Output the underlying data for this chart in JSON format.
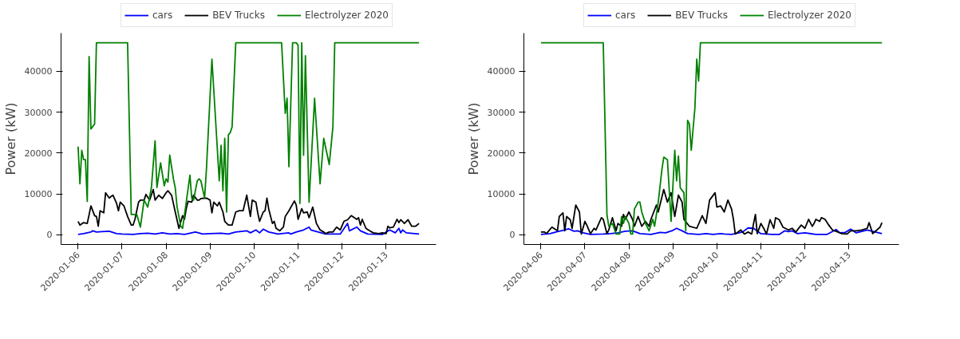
{
  "chart_data": [
    {
      "type": "line",
      "ylabel": "Power (kW)",
      "legend": "top",
      "grid": false,
      "xlim": [
        "2020-01-05T14:42",
        "2020-01-14T03:18"
      ],
      "xticks": [
        "2020-01-06",
        "2020-01-07",
        "2020-01-08",
        "2020-01-09",
        "2020-01-10",
        "2020-01-11",
        "2020-01-12",
        "2020-01-13"
      ],
      "ylim": [
        -2350,
        49350
      ],
      "yticks": [
        0,
        10000,
        20000,
        30000,
        40000
      ],
      "series": [
        {
          "name": "cars",
          "color": "#0000ff",
          "x": [
            "2020-01-06T00:00",
            "2020-01-06T03:00",
            "2020-01-06T06:00",
            "2020-01-06T07:00",
            "2020-01-06T08:00",
            "2020-01-06T10:00",
            "2020-01-06T13:00",
            "2020-01-06T17:00",
            "2020-01-06T21:00",
            "2020-01-07T00:00",
            "2020-01-07T06:00",
            "2020-01-07T10:00",
            "2020-01-07T14:00",
            "2020-01-07T18:00",
            "2020-01-07T22:00",
            "2020-01-08T02:00",
            "2020-01-08T06:00",
            "2020-01-08T10:00",
            "2020-01-08T16:00",
            "2020-01-08T20:00",
            "2020-01-09T00:00",
            "2020-01-09T06:00",
            "2020-01-09T10:00",
            "2020-01-09T14:00",
            "2020-01-09T20:00",
            "2020-01-09T22:00",
            "2020-01-10T01:00",
            "2020-01-10T03:00",
            "2020-01-10T05:00",
            "2020-01-10T08:00",
            "2020-01-10T13:00",
            "2020-01-10T19:00",
            "2020-01-10T20:00",
            "2020-01-10T23:00",
            "2020-01-11T03:00",
            "2020-01-11T06:00",
            "2020-01-11T07:00",
            "2020-01-11T11:00",
            "2020-01-11T15:00",
            "2020-01-11T23:00",
            "2020-01-12T03:00",
            "2020-01-12T04:00",
            "2020-01-12T08:00",
            "2020-01-12T10:00",
            "2020-01-12T14:00",
            "2020-01-12T22:00",
            "2020-01-13T02:00",
            "2020-01-13T05:00",
            "2020-01-13T07:00",
            "2020-01-13T08:00",
            "2020-01-13T09:00",
            "2020-01-13T11:00",
            "2020-01-13T18:00"
          ],
          "values": [
            100,
            300,
            600,
            700,
            1000,
            700,
            800,
            900,
            300,
            200,
            100,
            300,
            400,
            200,
            500,
            200,
            300,
            100,
            700,
            200,
            300,
            400,
            200,
            700,
            1000,
            500,
            1200,
            500,
            1400,
            700,
            200,
            500,
            200,
            700,
            1200,
            1900,
            1200,
            700,
            200,
            200,
            2800,
            1000,
            1900,
            1000,
            200,
            100,
            1200,
            500,
            1600,
            500,
            1200,
            500,
            200
          ]
        },
        {
          "name": "BEV Trucks",
          "color": "#000000",
          "x": [
            "2020-01-06T00:00",
            "2020-01-06T01:00",
            "2020-01-06T03:00",
            "2020-01-06T05:00",
            "2020-01-06T07:00",
            "2020-01-06T09:00",
            "2020-01-06T10:00",
            "2020-01-06T11:00",
            "2020-01-06T12:00",
            "2020-01-06T14:00",
            "2020-01-06T15:00",
            "2020-01-06T17:00",
            "2020-01-06T18:00",
            "2020-01-06T19:00",
            "2020-01-06T21:00",
            "2020-01-06T22:00",
            "2020-01-06T23:00",
            "2020-01-07T01:00",
            "2020-01-07T03:00",
            "2020-01-07T05:00",
            "2020-01-07T06:00",
            "2020-01-07T07:00",
            "2020-01-07T09:00",
            "2020-01-07T10:00",
            "2020-01-07T12:00",
            "2020-01-07T13:00",
            "2020-01-07T15:00",
            "2020-01-07T17:00",
            "2020-01-07T18:00",
            "2020-01-07T20:00",
            "2020-01-07T22:00",
            "2020-01-08T00:00",
            "2020-01-08T01:00",
            "2020-01-08T03:00",
            "2020-01-08T05:00",
            "2020-01-08T07:00",
            "2020-01-08T09:00",
            "2020-01-08T10:00",
            "2020-01-08T11:00",
            "2020-01-08T12:00",
            "2020-01-08T14:00",
            "2020-01-08T15:00",
            "2020-01-08T17:00",
            "2020-01-08T18:00",
            "2020-01-08T19:00",
            "2020-01-08T22:00",
            "2020-01-09T00:00",
            "2020-01-09T01:00",
            "2020-01-09T02:00",
            "2020-01-09T04:00",
            "2020-01-09T05:00",
            "2020-01-09T07:00",
            "2020-01-09T08:00",
            "2020-01-09T10:00",
            "2020-01-09T12:00",
            "2020-01-09T14:00",
            "2020-01-09T16:00",
            "2020-01-09T18:00",
            "2020-01-09T20:00",
            "2020-01-09T22:00",
            "2020-01-09T23:00",
            "2020-01-10T01:00",
            "2020-01-10T02:00",
            "2020-01-10T03:00",
            "2020-01-10T05:00",
            "2020-01-10T06:00",
            "2020-01-10T07:00",
            "2020-01-10T08:00",
            "2020-01-10T10:00",
            "2020-01-10T11:00",
            "2020-01-10T12:00",
            "2020-01-10T14:00",
            "2020-01-10T16:00",
            "2020-01-10T17:00",
            "2020-01-10T19:00",
            "2020-01-10T22:00",
            "2020-01-10T23:00",
            "2020-01-11T00:00",
            "2020-01-11T02:00",
            "2020-01-11T03:00",
            "2020-01-11T05:00",
            "2020-01-11T06:00",
            "2020-01-11T08:00",
            "2020-01-11T10:00",
            "2020-01-11T12:00",
            "2020-01-11T14:00",
            "2020-01-11T15:00",
            "2020-01-11T17:00",
            "2020-01-11T19:00",
            "2020-01-11T21:00",
            "2020-01-11T23:00",
            "2020-01-12T01:00",
            "2020-01-12T03:00",
            "2020-01-12T05:00",
            "2020-01-12T08:00",
            "2020-01-12T09:00",
            "2020-01-12T10:00",
            "2020-01-12T11:00",
            "2020-01-12T13:00",
            "2020-01-12T15:00",
            "2020-01-12T17:00",
            "2020-01-12T20:00",
            "2020-01-12T22:00",
            "2020-01-13T00:00",
            "2020-01-13T01:00",
            "2020-01-13T02:00",
            "2020-01-13T04:00",
            "2020-01-13T06:00",
            "2020-01-13T07:00",
            "2020-01-13T08:00",
            "2020-01-13T10:00",
            "2020-01-13T12:00",
            "2020-01-13T14:00",
            "2020-01-13T16:00",
            "2020-01-13T18:00"
          ],
          "values": [
            3300,
            2400,
            3000,
            2800,
            7100,
            4700,
            4500,
            2100,
            5900,
            5400,
            10300,
            9000,
            9400,
            9700,
            7700,
            5900,
            8000,
            7100,
            4500,
            2400,
            2400,
            3800,
            8000,
            8500,
            8500,
            9900,
            8500,
            11100,
            8500,
            9700,
            8900,
            10300,
            10800,
            9700,
            5600,
            1600,
            4700,
            3800,
            6400,
            8200,
            8000,
            9700,
            8500,
            8500,
            8900,
            9000,
            8500,
            5400,
            8000,
            7100,
            8000,
            5600,
            3300,
            2400,
            2400,
            5600,
            5900,
            5900,
            9700,
            4500,
            8500,
            8000,
            5400,
            3300,
            5600,
            5900,
            9000,
            6300,
            2800,
            3300,
            1600,
            1000,
            1900,
            4500,
            5900,
            8300,
            7300,
            3800,
            6400,
            5400,
            5600,
            4200,
            6800,
            2800,
            1200,
            700,
            300,
            700,
            700,
            1900,
            1200,
            3300,
            3700,
            4700,
            3800,
            4200,
            2400,
            3800,
            1600,
            1000,
            500,
            300,
            500,
            300,
            2100,
            1700,
            1900,
            3800,
            3000,
            3700,
            2800,
            3700,
            2100,
            2100,
            2800
          ]
        },
        {
          "name": "Electrolyzer 2020",
          "color": "#008000",
          "x": [
            "2020-01-06T00:00",
            "2020-01-06T01:00",
            "2020-01-06T02:00",
            "2020-01-06T03:00",
            "2020-01-06T04:00",
            "2020-01-06T05:00",
            "2020-01-06T06:00",
            "2020-01-06T07:00",
            "2020-01-06T09:00",
            "2020-01-06T10:00",
            "2020-01-07T03:00",
            "2020-01-07T05:00",
            "2020-01-07T08:00",
            "2020-01-07T10:00",
            "2020-01-07T12:00",
            "2020-01-07T14:00",
            "2020-01-07T16:00",
            "2020-01-07T18:00",
            "2020-01-07T19:00",
            "2020-01-07T21:00",
            "2020-01-07T23:00",
            "2020-01-08T00:00",
            "2020-01-08T01:00",
            "2020-01-08T02:00",
            "2020-01-08T04:00",
            "2020-01-08T05:00",
            "2020-01-08T06:00",
            "2020-01-08T08:00",
            "2020-01-08T09:00",
            "2020-01-08T11:00",
            "2020-01-08T13:00",
            "2020-01-08T14:00",
            "2020-01-08T15:00",
            "2020-01-08T17:00",
            "2020-01-08T18:00",
            "2020-01-08T19:00",
            "2020-01-08T21:00",
            "2020-01-08T22:00",
            "2020-01-09T01:00",
            "2020-01-09T05:00",
            "2020-01-09T06:00",
            "2020-01-09T07:00",
            "2020-01-09T08:00",
            "2020-01-09T09:00",
            "2020-01-09T10:00",
            "2020-01-09T11:00",
            "2020-01-09T12:00",
            "2020-01-09T14:00",
            "2020-01-10T15:00",
            "2020-01-10T17:00",
            "2020-01-10T18:00",
            "2020-01-10T19:00",
            "2020-01-10T21:00",
            "2020-01-10T23:00",
            "2020-01-11T00:00",
            "2020-01-11T01:00",
            "2020-01-11T02:00",
            "2020-01-11T03:00",
            "2020-01-11T04:00",
            "2020-01-11T06:00",
            "2020-01-11T09:00",
            "2020-01-11T12:00",
            "2020-01-11T14:00",
            "2020-01-11T17:00",
            "2020-01-11T19:00",
            "2020-01-11T20:00",
            "2020-01-13T18:00"
          ],
          "values": [
            21600,
            12500,
            20700,
            18400,
            18400,
            8200,
            43600,
            25900,
            27100,
            47000,
            47000,
            5000,
            5000,
            1900,
            8500,
            6800,
            11600,
            23000,
            11600,
            17600,
            12000,
            13700,
            12900,
            19500,
            13700,
            11500,
            6800,
            2100,
            1600,
            8000,
            14600,
            9000,
            8500,
            13200,
            13700,
            13200,
            9000,
            16000,
            43000,
            13200,
            21900,
            10800,
            23600,
            5600,
            24500,
            25000,
            26400,
            47000,
            47000,
            29700,
            33400,
            16700,
            47000,
            47000,
            46400,
            7700,
            47000,
            19500,
            43800,
            8000,
            33400,
            12500,
            23600,
            17200,
            26400,
            47000,
            47000
          ]
        }
      ]
    },
    {
      "type": "line",
      "ylabel": "Power (kW)",
      "legend": "top",
      "grid": false,
      "xlim": [
        "2020-04-05T14:42",
        "2020-04-14T03:18"
      ],
      "xticks": [
        "2020-04-06",
        "2020-04-07",
        "2020-04-08",
        "2020-04-09",
        "2020-04-10",
        "2020-04-11",
        "2020-04-12",
        "2020-04-13"
      ],
      "ylim": [
        -2350,
        49350
      ],
      "yticks": [
        0,
        10000,
        20000,
        30000,
        40000
      ],
      "series": [
        {
          "name": "cars",
          "color": "#0000ff",
          "x": [
            "2020-04-06T00:00",
            "2020-04-06T05:00",
            "2020-04-06T09:00",
            "2020-04-06T12:00",
            "2020-04-06T15:00",
            "2020-04-06T18:00",
            "2020-04-06T20:00",
            "2020-04-06T23:00",
            "2020-04-07T03:00",
            "2020-04-07T10:00",
            "2020-04-07T14:00",
            "2020-04-07T18:00",
            "2020-04-07T22:00",
            "2020-04-08T02:00",
            "2020-04-08T06:00",
            "2020-04-08T12:00",
            "2020-04-08T17:00",
            "2020-04-08T20:00",
            "2020-04-09T00:00",
            "2020-04-09T02:00",
            "2020-04-09T05:00",
            "2020-04-09T08:00",
            "2020-04-09T14:00",
            "2020-04-09T18:00",
            "2020-04-09T22:00",
            "2020-04-10T02:00",
            "2020-04-10T04:00",
            "2020-04-10T08:00",
            "2020-04-10T14:00",
            "2020-04-10T17:00",
            "2020-04-10T20:00",
            "2020-04-11T00:00",
            "2020-04-11T06:00",
            "2020-04-11T10:00",
            "2020-04-11T13:00",
            "2020-04-11T15:00",
            "2020-04-11T17:00",
            "2020-04-11T20:00",
            "2020-04-12T00:00",
            "2020-04-12T06:00",
            "2020-04-12T12:00",
            "2020-04-12T17:00",
            "2020-04-12T19:00",
            "2020-04-12T22:00",
            "2020-04-13T01:00",
            "2020-04-13T04:00",
            "2020-04-13T10:00",
            "2020-04-13T18:00"
          ],
          "values": [
            100,
            300,
            800,
            1100,
            1500,
            900,
            1000,
            500,
            100,
            200,
            300,
            500,
            900,
            1000,
            300,
            100,
            600,
            500,
            1100,
            1600,
            1000,
            300,
            100,
            300,
            100,
            300,
            200,
            100,
            700,
            1700,
            1600,
            300,
            100,
            100,
            1000,
            800,
            1000,
            300,
            500,
            100,
            100,
            1300,
            500,
            600,
            1400,
            500,
            1200,
            300
          ]
        },
        {
          "name": "BEV Trucks",
          "color": "#000000",
          "x": [
            "2020-04-06T00:00",
            "2020-04-06T02:00",
            "2020-04-06T03:00",
            "2020-04-06T06:00",
            "2020-04-06T09:00",
            "2020-04-06T10:00",
            "2020-04-06T12:00",
            "2020-04-06T13:00",
            "2020-04-06T14:00",
            "2020-04-06T16:00",
            "2020-04-06T17:00",
            "2020-04-06T19:00",
            "2020-04-06T21:00",
            "2020-04-06T22:00",
            "2020-04-07T00:00",
            "2020-04-07T01:00",
            "2020-04-07T03:00",
            "2020-04-07T05:00",
            "2020-04-07T06:00",
            "2020-04-07T09:00",
            "2020-04-07T10:00",
            "2020-04-07T12:00",
            "2020-04-07T13:00",
            "2020-04-07T15:00",
            "2020-04-07T17:00",
            "2020-04-07T18:00",
            "2020-04-07T20:00",
            "2020-04-07T21:00",
            "2020-04-07T22:00",
            "2020-04-08T00:00",
            "2020-04-08T02:00",
            "2020-04-08T03:00",
            "2020-04-08T05:00",
            "2020-04-08T07:00",
            "2020-04-08T09:00",
            "2020-04-08T11:00",
            "2020-04-08T12:00",
            "2020-04-08T15:00",
            "2020-04-08T16:00",
            "2020-04-08T19:00",
            "2020-04-08T21:00",
            "2020-04-08T23:00",
            "2020-04-09T01:00",
            "2020-04-09T03:00",
            "2020-04-09T05:00",
            "2020-04-09T06:00",
            "2020-04-09T09:00",
            "2020-04-09T13:00",
            "2020-04-09T16:00",
            "2020-04-09T18:00",
            "2020-04-09T20:00",
            "2020-04-09T23:00",
            "2020-04-10T00:00",
            "2020-04-10T02:00",
            "2020-04-10T04:00",
            "2020-04-10T06:00",
            "2020-04-10T08:00",
            "2020-04-10T09:00",
            "2020-04-10T10:00",
            "2020-04-10T13:00",
            "2020-04-10T15:00",
            "2020-04-10T17:00",
            "2020-04-10T19:00",
            "2020-04-10T20:00",
            "2020-04-10T21:00",
            "2020-04-10T22:00",
            "2020-04-11T00:00",
            "2020-04-11T02:00",
            "2020-04-11T03:00",
            "2020-04-11T05:00",
            "2020-04-11T07:00",
            "2020-04-11T08:00",
            "2020-04-11T10:00",
            "2020-04-11T12:00",
            "2020-04-11T15:00",
            "2020-04-11T17:00",
            "2020-04-11T19:00",
            "2020-04-11T22:00",
            "2020-04-12T00:00",
            "2020-04-12T02:00",
            "2020-04-12T04:00",
            "2020-04-12T05:00",
            "2020-04-12T06:00",
            "2020-04-12T08:00",
            "2020-04-12T09:00",
            "2020-04-12T11:00",
            "2020-04-12T13:00",
            "2020-04-12T15:00",
            "2020-04-12T18:00",
            "2020-04-12T20:00",
            "2020-04-12T23:00",
            "2020-04-13T01:00",
            "2020-04-13T04:00",
            "2020-04-13T07:00",
            "2020-04-13T10:00",
            "2020-04-13T11:00",
            "2020-04-13T13:00",
            "2020-04-13T17:00",
            "2020-04-13T18:00"
          ],
          "values": [
            700,
            700,
            300,
            1900,
            1000,
            4500,
            5400,
            1000,
            4500,
            3700,
            1600,
            7300,
            5600,
            200,
            3300,
            2400,
            300,
            1600,
            1200,
            4200,
            3800,
            300,
            1200,
            4200,
            1000,
            2800,
            2100,
            5000,
            3800,
            5600,
            3700,
            2100,
            4500,
            2100,
            3300,
            2100,
            3800,
            7300,
            5600,
            11100,
            8000,
            10300,
            4500,
            9700,
            8000,
            3800,
            2100,
            1600,
            4700,
            2800,
            8500,
            10300,
            6800,
            7100,
            5600,
            8500,
            6300,
            3800,
            200,
            1200,
            200,
            700,
            200,
            2800,
            5000,
            300,
            2800,
            1200,
            200,
            3700,
            1600,
            4200,
            3700,
            1900,
            1200,
            1600,
            700,
            2400,
            1600,
            3800,
            2100,
            2800,
            3800,
            3300,
            4200,
            3800,
            2400,
            1200,
            700,
            300,
            200,
            1000,
            1000,
            1200,
            1600,
            3000,
            300,
            1900,
            3000
          ]
        },
        {
          "name": "Electrolyzer 2020",
          "color": "#008000",
          "x": [
            "2020-04-06T00:00",
            "2020-04-07T10:00",
            "2020-04-07T12:00",
            "2020-04-07T13:00",
            "2020-04-07T15:00",
            "2020-04-07T17:00",
            "2020-04-07T19:00",
            "2020-04-07T20:00",
            "2020-04-07T21:00",
            "2020-04-07T22:00",
            "2020-04-08T00:00",
            "2020-04-08T01:00",
            "2020-04-08T02:00",
            "2020-04-08T03:00",
            "2020-04-08T05:00",
            "2020-04-08T06:00",
            "2020-04-08T07:00",
            "2020-04-08T09:00",
            "2020-04-08T11:00",
            "2020-04-08T13:00",
            "2020-04-08T14:00",
            "2020-04-08T16:00",
            "2020-04-08T18:00",
            "2020-04-08T19:00",
            "2020-04-08T21:00",
            "2020-04-08T23:00",
            "2020-04-09T01:00",
            "2020-04-09T02:00",
            "2020-04-09T03:00",
            "2020-04-09T04:00",
            "2020-04-09T06:00",
            "2020-04-09T07:00",
            "2020-04-09T08:00",
            "2020-04-09T09:00",
            "2020-04-09T10:00",
            "2020-04-09T12:00",
            "2020-04-09T13:00",
            "2020-04-09T14:00",
            "2020-04-09T15:00",
            "2020-04-13T18:00"
          ],
          "values": [
            47000,
            47000,
            5000,
            2100,
            2800,
            200,
            200,
            4500,
            2800,
            4500,
            2800,
            200,
            200,
            6300,
            8000,
            8000,
            5600,
            2800,
            1000,
            3800,
            2100,
            8000,
            16000,
            19000,
            18400,
            3300,
            20700,
            13200,
            19300,
            11500,
            10300,
            1000,
            28000,
            27100,
            20700,
            31100,
            43000,
            37600,
            47000,
            47000
          ]
        }
      ]
    }
  ]
}
